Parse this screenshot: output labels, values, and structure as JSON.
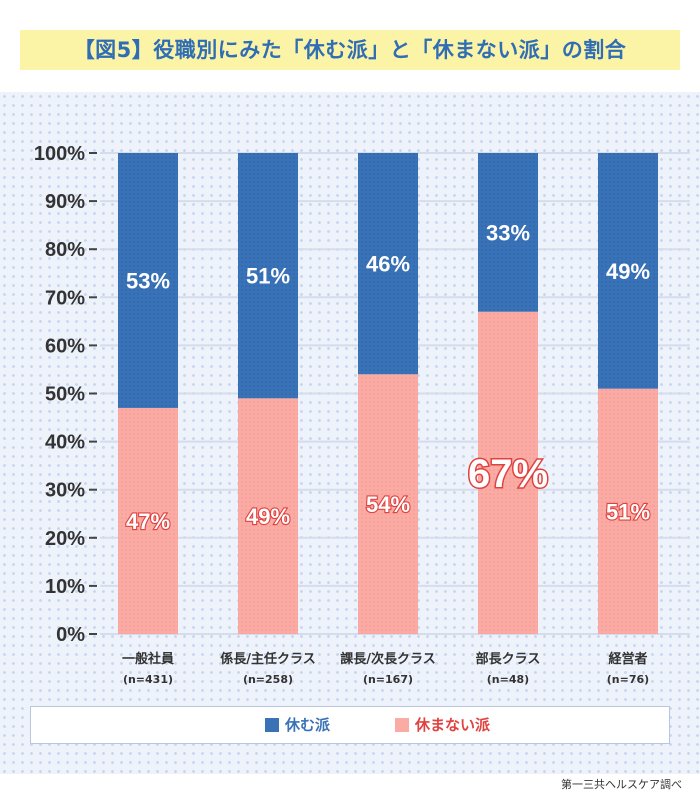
{
  "title": "【図5】役職別にみた「休む派」と「休まない派」の割合",
  "credit": "第一三共ヘルスケア調べ",
  "colors": {
    "rest": "#3a72b8",
    "no_rest": "#f9aba4",
    "no_rest_text": "#e0423f",
    "title": "#2f6db5"
  },
  "legend": [
    {
      "name": "休む派"
    },
    {
      "name": "休まない派"
    }
  ],
  "chart_data": {
    "type": "bar",
    "stacked": true,
    "categories": [
      "一般社員",
      "係長/主任クラス",
      "課長/次長クラス",
      "部長クラス",
      "経営者"
    ],
    "category_notes": [
      "(n=431)",
      "(n=258)",
      "(n=167)",
      "(n=48)",
      "(n=76)"
    ],
    "series": [
      {
        "name": "休まない派",
        "values": [
          47,
          49,
          54,
          67,
          51
        ],
        "labels": [
          "47%",
          "49%",
          "54%",
          "67%",
          "51%"
        ]
      },
      {
        "name": "休む派",
        "values": [
          53,
          51,
          46,
          33,
          49
        ],
        "labels": [
          "53%",
          "51%",
          "46%",
          "33%",
          "49%"
        ]
      }
    ],
    "y_ticks": [
      "0%",
      "10%",
      "20%",
      "30%",
      "40%",
      "50%",
      "60%",
      "70%",
      "80%",
      "90%",
      "100%"
    ],
    "ylim": [
      0,
      100
    ],
    "grid": true,
    "legend_position": "bottom"
  }
}
